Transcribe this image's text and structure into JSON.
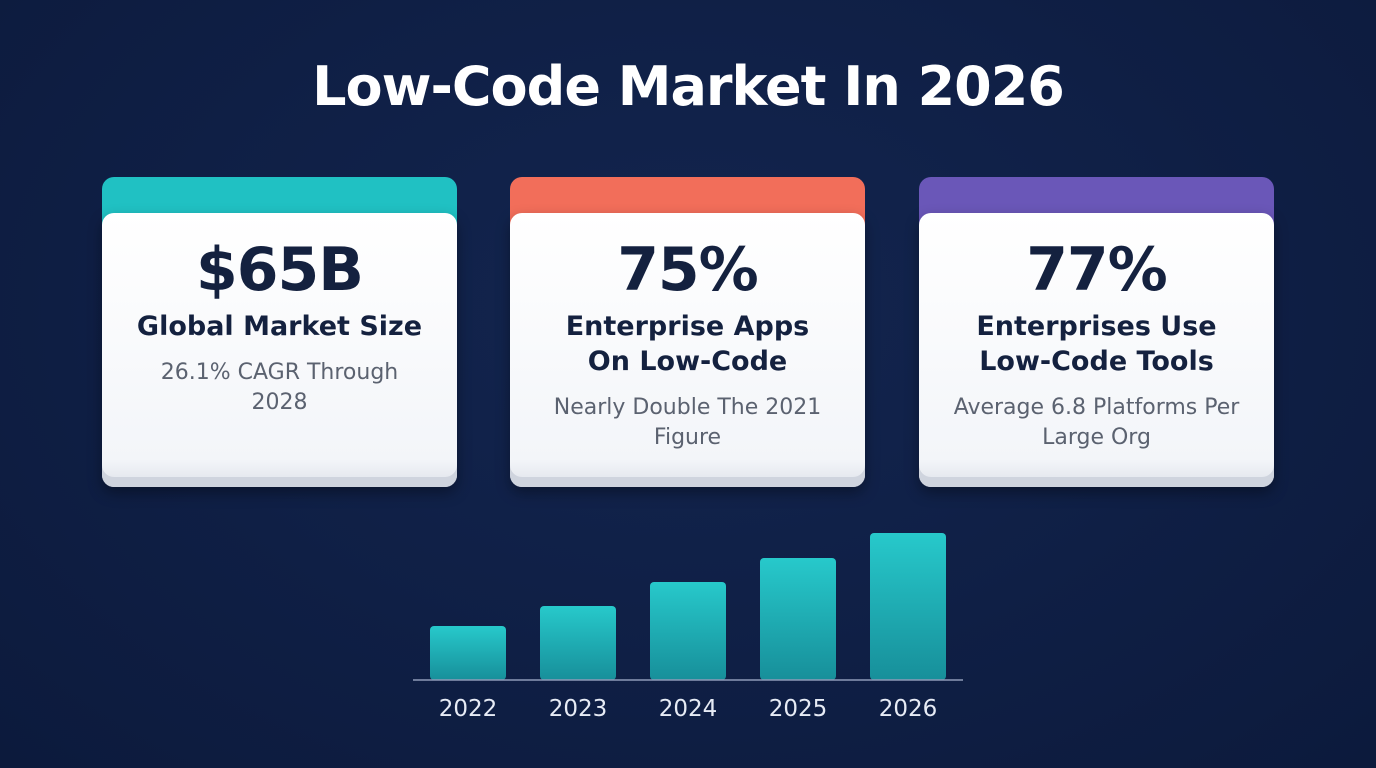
{
  "title": "Low-Code Market In 2026",
  "cards": [
    {
      "value": "$65B",
      "label": "Global Market Size",
      "sub": "26.1% CAGR Through 2028",
      "accent": "#20c1c3"
    },
    {
      "value": "75%",
      "label": "Enterprise Apps On Low-Code",
      "sub": "Nearly Double The 2021 Figure",
      "accent": "#f26e5a"
    },
    {
      "value": "77%",
      "label": "Enterprises Use Low-Code Tools",
      "sub": "Average 6.8 Platforms Per Large Org",
      "accent": "#6a57b8"
    }
  ],
  "chart_data": {
    "type": "bar",
    "categories": [
      "2022",
      "2023",
      "2024",
      "2025",
      "2026"
    ],
    "values": [
      54,
      74,
      98,
      122,
      147
    ],
    "ylim": [
      0,
      150
    ],
    "bar_color": "#1fb6b8",
    "axis_color": "#8e9ab8"
  }
}
